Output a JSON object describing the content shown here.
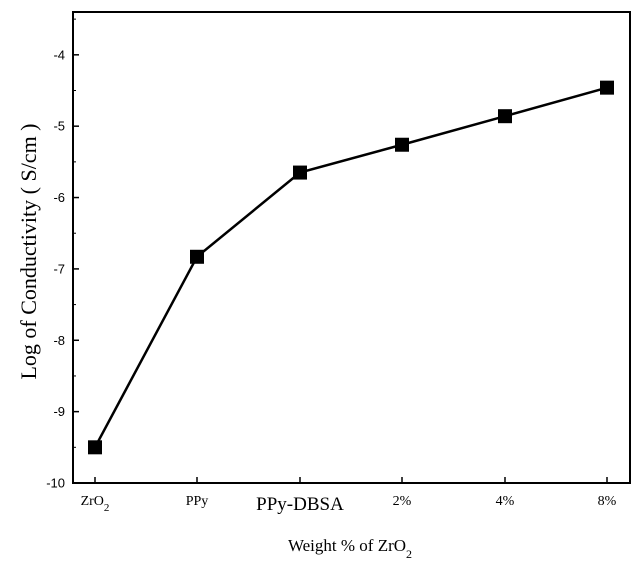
{
  "chart_data": {
    "type": "line",
    "title": "",
    "xlabel": "Weight % of ZrO",
    "xlabel_subscript": "2",
    "ylabel": "Log of Conductivity ( S/cm )",
    "categories": [
      {
        "label": "ZrO",
        "sub": "2"
      },
      {
        "label": "PPy",
        "sub": ""
      },
      {
        "label": "PPy-DBSA",
        "sub": ""
      },
      {
        "label": "2%",
        "sub": ""
      },
      {
        "label": "4%",
        "sub": ""
      },
      {
        "label": "8%",
        "sub": ""
      }
    ],
    "series": [
      {
        "values": [
          -9.5,
          -6.83,
          -5.65,
          -5.26,
          -4.86,
          -4.46
        ],
        "marker": "square",
        "color": "#000000"
      }
    ],
    "ylim": [
      -10,
      -3.4
    ],
    "yticks": [
      -10,
      -9,
      -8,
      -7,
      -6,
      -5,
      -4
    ],
    "grid": false,
    "legend": "none"
  }
}
